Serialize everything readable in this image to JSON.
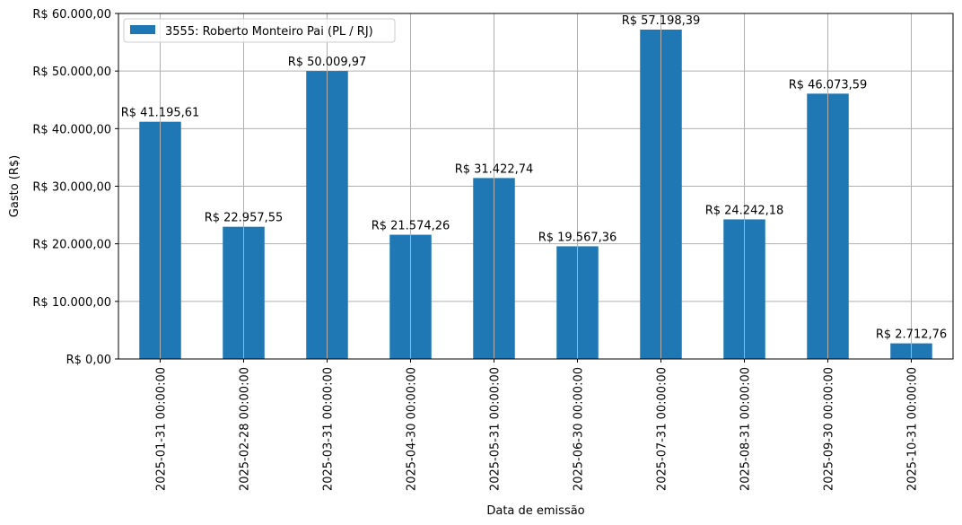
{
  "chart_data": {
    "type": "bar",
    "categories": [
      "2025-01-31 00:00:00",
      "2025-02-28 00:00:00",
      "2025-03-31 00:00:00",
      "2025-04-30 00:00:00",
      "2025-05-31 00:00:00",
      "2025-06-30 00:00:00",
      "2025-07-31 00:00:00",
      "2025-08-31 00:00:00",
      "2025-09-30 00:00:00",
      "2025-10-31 00:00:00"
    ],
    "series": [
      {
        "name": "3555: Roberto Monteiro Pai (PL / RJ)",
        "color": "#1f77b4",
        "values": [
          41195.61,
          22957.55,
          50009.97,
          21574.26,
          31422.74,
          19567.36,
          57198.39,
          24242.18,
          46073.59,
          2712.76
        ],
        "labels": [
          "R$ 41.195,61",
          "R$ 22.957,55",
          "R$ 50.009,97",
          "R$ 21.574,26",
          "R$ 31.422,74",
          "R$ 19.567,36",
          "R$ 57.198,39",
          "R$ 24.242,18",
          "R$ 46.073,59",
          "R$ 2.712,76"
        ]
      }
    ],
    "xlabel": "Data de emissão",
    "ylabel": "Gasto (R$)",
    "ylim": [
      0,
      60000
    ],
    "yticks": [
      0,
      10000,
      20000,
      30000,
      40000,
      50000,
      60000
    ],
    "ytick_labels": [
      "R$ 0,00",
      "R$ 10.000,00",
      "R$ 20.000,00",
      "R$ 30.000,00",
      "R$ 40.000,00",
      "R$ 50.000,00",
      "R$ 60.000,00"
    ],
    "grid": true,
    "legend_position": "top-left"
  }
}
